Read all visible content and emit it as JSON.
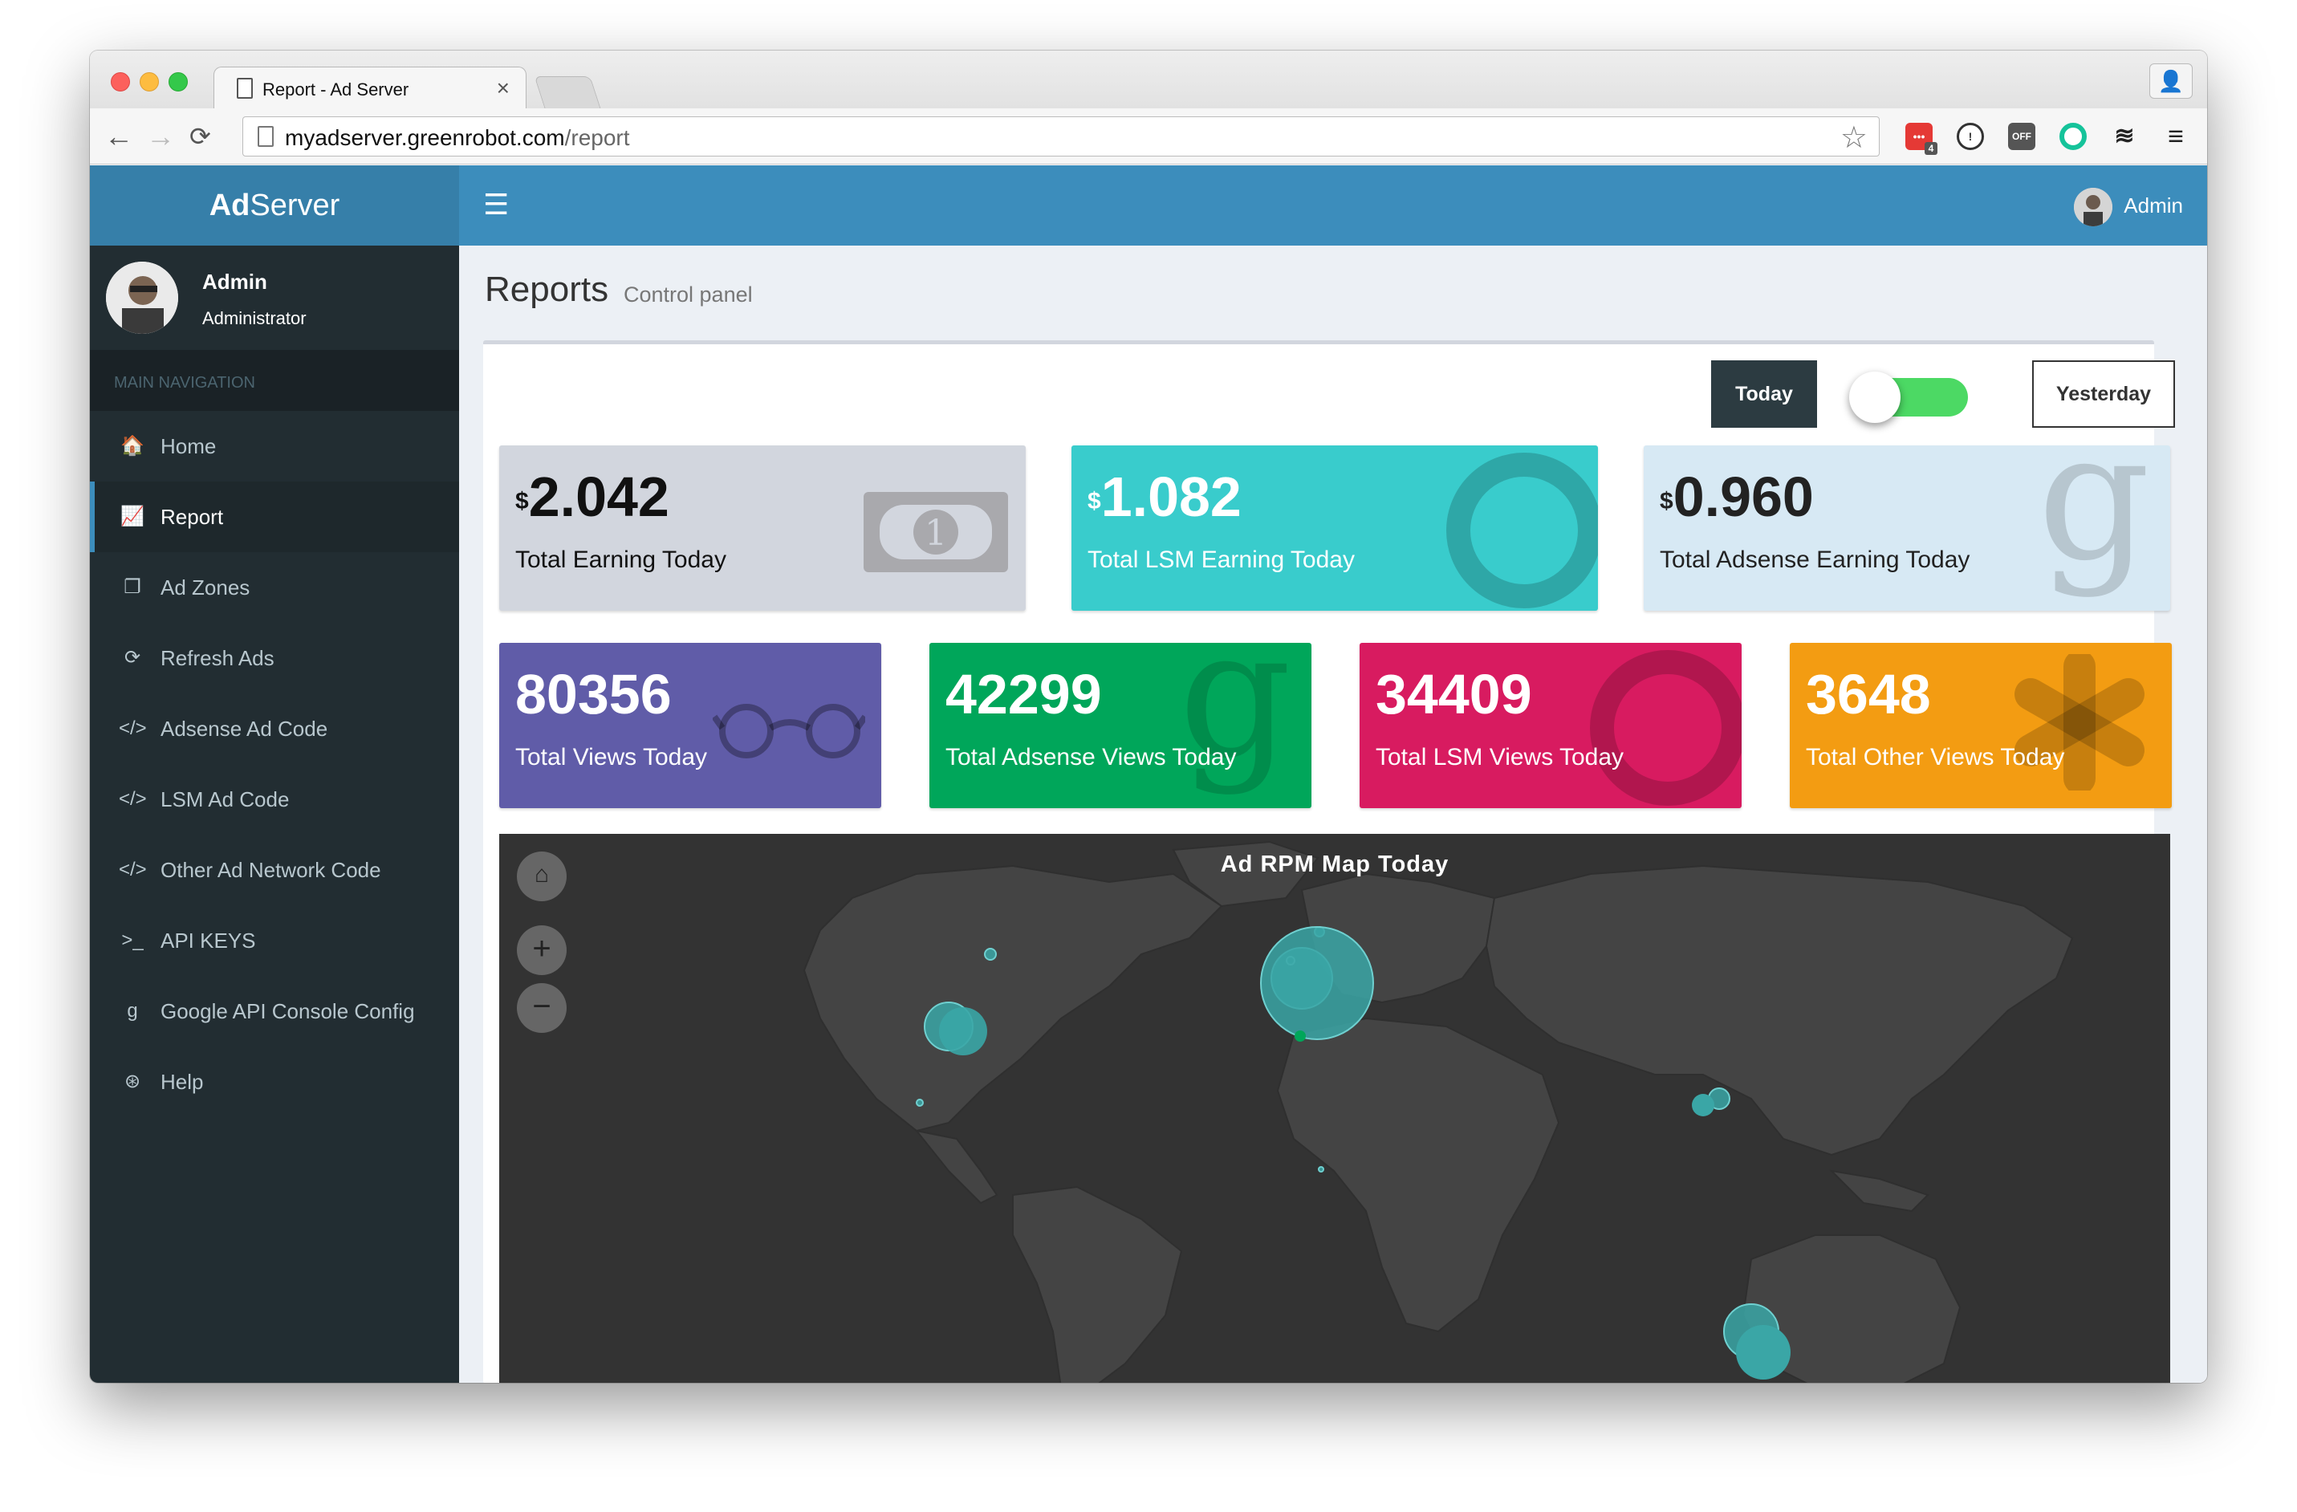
{
  "browser": {
    "tab_title": "Report - Ad Server",
    "url_host": "myadserver.greenrobot.com",
    "url_path": "/report",
    "extension_badge": "4",
    "extension_off_label": "OFF"
  },
  "app": {
    "logo_bold": "Ad",
    "logo_light": "Server",
    "topbar_user": "Admin"
  },
  "sidebar": {
    "user_name": "Admin",
    "user_role": "Administrator",
    "nav_header": "MAIN NAVIGATION",
    "items": [
      {
        "label": "Home",
        "icon": "home-icon",
        "glyph": "🏠"
      },
      {
        "label": "Report",
        "icon": "line-chart-icon",
        "glyph": "📈"
      },
      {
        "label": "Ad Zones",
        "icon": "copy-icon",
        "glyph": "❐"
      },
      {
        "label": "Refresh Ads",
        "icon": "refresh-icon",
        "glyph": "⟳"
      },
      {
        "label": "Adsense Ad Code",
        "icon": "code-icon",
        "glyph": "</>"
      },
      {
        "label": "LSM Ad Code",
        "icon": "code-icon",
        "glyph": "</>"
      },
      {
        "label": "Other Ad Network Code",
        "icon": "code-icon",
        "glyph": "</>"
      },
      {
        "label": "API KEYS",
        "icon": "terminal-icon",
        "glyph": ">_"
      },
      {
        "label": "Google API Console Config",
        "icon": "google-icon",
        "glyph": "g"
      },
      {
        "label": "Help",
        "icon": "life-ring-icon",
        "glyph": "⊛"
      }
    ],
    "active_index": 1
  },
  "content": {
    "title": "Reports",
    "subtitle": "Control panel",
    "today_label": "Today",
    "yesterday_label": "Yesterday",
    "toggle_on": true
  },
  "earnings": [
    {
      "currency": "$",
      "value": "2.042",
      "label": "Total Earning Today",
      "icon": "money-icon",
      "bg": "#d2d6de",
      "fg": "#111111"
    },
    {
      "currency": "$",
      "value": "1.082",
      "label": "Total LSM Earning Today",
      "icon": "circle-o-notch-icon",
      "bg": "#39cccc",
      "fg": "#ffffff"
    },
    {
      "currency": "$",
      "value": "0.960",
      "label": "Total Adsense Earning Today",
      "icon": "google-icon",
      "bg": "#d7e9f4",
      "fg": "#222222"
    }
  ],
  "views": [
    {
      "value": "80356",
      "label": "Total Views Today",
      "icon": "glasses-icon",
      "bg": "#605ca8"
    },
    {
      "value": "42299",
      "label": "Total Adsense Views Today",
      "icon": "google-icon",
      "bg": "#00a65a"
    },
    {
      "value": "34409",
      "label": "Total LSM Views Today",
      "icon": "circle-o-notch-icon",
      "bg": "#d81b60"
    },
    {
      "value": "3648",
      "label": "Total Other Views Today",
      "icon": "asterisk-icon",
      "bg": "#f39c12"
    }
  ],
  "map": {
    "title": "Ad RPM Map Today",
    "home_icon": "home-icon",
    "zoom_in_icon": "plus-icon",
    "zoom_out_icon": "minus-icon"
  },
  "colors": {
    "topbar": "#3c8dbc",
    "logo_bar": "#367fa9",
    "sidebar": "#222d32",
    "map_bg": "#333333",
    "land": "#444444",
    "bubble": "#3aa6a6"
  }
}
